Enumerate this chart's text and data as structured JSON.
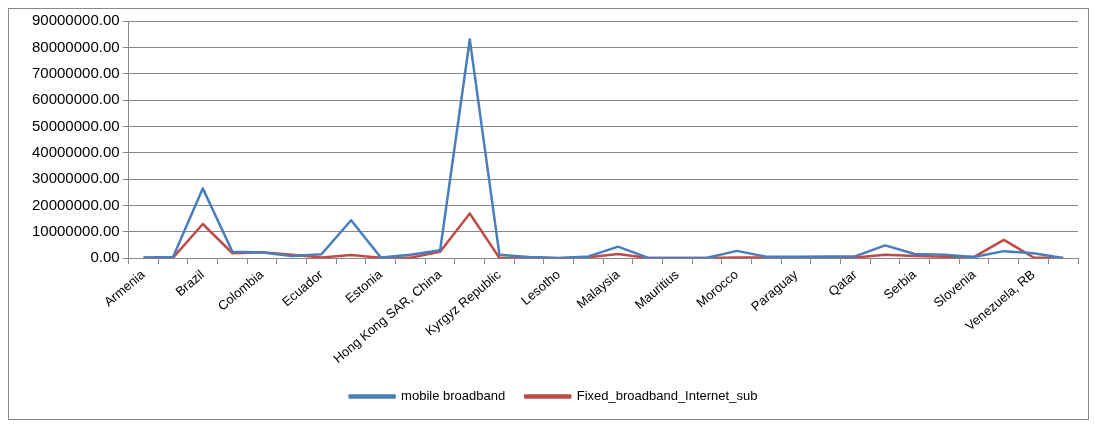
{
  "chart_data": {
    "type": "line",
    "categories": [
      "Armenia",
      null,
      "Brazil",
      null,
      "Colombia",
      null,
      "Ecuador",
      null,
      "Estonia",
      null,
      "Hong Kong SAR, China",
      null,
      "Kyrgyz Republic",
      null,
      "Lesotho",
      null,
      "Malaysia",
      null,
      "Mauritius",
      null,
      "Morocco",
      null,
      "Paraguay",
      null,
      "Qatar",
      null,
      "Serbia",
      null,
      "Slovenia",
      null,
      "Venezuela, RB",
      null
    ],
    "series": [
      {
        "name": "mobile broadband",
        "color": "#4a7ebb",
        "values": [
          300000,
          500000,
          26500000,
          2500000,
          2200000,
          900000,
          1500000,
          14400000,
          300000,
          1300000,
          3000000,
          83000000,
          1300000,
          500000,
          100000,
          700000,
          4400000,
          200000,
          100000,
          200000,
          2800000,
          600000,
          600000,
          600000,
          800000,
          4900000,
          1600000,
          1300000,
          500000,
          2700000,
          1900000,
          100000
        ]
      },
      {
        "name": "Fixed_broadband_Internet_sub",
        "color": "#be4b48",
        "values": [
          100000,
          200000,
          13000000,
          1900000,
          2300000,
          1300000,
          300000,
          1200000,
          200000,
          200000,
          2500000,
          17000000,
          100000,
          300000,
          0,
          400000,
          1600000,
          100000,
          100000,
          100000,
          300000,
          300000,
          400000,
          600000,
          300000,
          1300000,
          900000,
          600000,
          500000,
          7000000,
          300000,
          100000
        ]
      }
    ],
    "ylim": [
      0,
      90000000
    ],
    "yticks": [
      {
        "value": 0,
        "label": "0.00"
      },
      {
        "value": 10000000,
        "label": "10000000.00"
      },
      {
        "value": 20000000,
        "label": "20000000.00"
      },
      {
        "value": 30000000,
        "label": "30000000.00"
      },
      {
        "value": 40000000,
        "label": "40000000.00"
      },
      {
        "value": 50000000,
        "label": "50000000.00"
      },
      {
        "value": 60000000,
        "label": "60000000.00"
      },
      {
        "value": 70000000,
        "label": "70000000.00"
      },
      {
        "value": 80000000,
        "label": "80000000.00"
      },
      {
        "value": 90000000,
        "label": "90000000.00"
      }
    ],
    "grid": "y",
    "legend": "bottom",
    "marker": "none",
    "line_style": "solid"
  }
}
